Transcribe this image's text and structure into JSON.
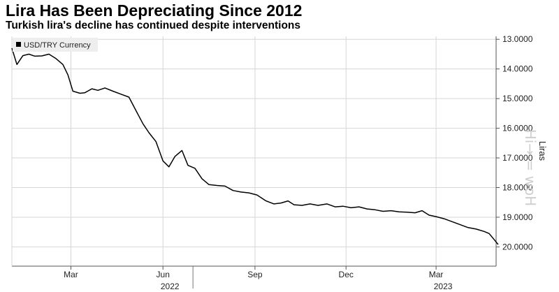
{
  "header": {
    "title": "Lira Has Been Depreciating Since 2012",
    "subtitle": "Turkish lira's decline has continued despite interventions"
  },
  "watermark": "Hi→ = woH",
  "chart_data": {
    "type": "line",
    "title": "Lira Has Been Depreciating Since 2012",
    "subtitle": "Turkish lira's decline has continued despite interventions",
    "ylabel": "Liras",
    "y_inverted": true,
    "ylim": [
      12.9,
      20.65
    ],
    "y_ticks": [
      13,
      14,
      15,
      16,
      17,
      18,
      19,
      20
    ],
    "y_tick_labels": [
      "13.0000",
      "14.0000",
      "15.0000",
      "16.0000",
      "17.0000",
      "18.0000",
      "19.0000",
      "20.0000"
    ],
    "x_ticks": [
      {
        "x": "2022-03-01",
        "label": "Mar"
      },
      {
        "x": "2022-06-01",
        "label": "Jun"
      },
      {
        "x": "2022-09-01",
        "label": "Sep"
      },
      {
        "x": "2022-12-01",
        "label": "Dec"
      },
      {
        "x": "2023-03-01",
        "label": "Mar"
      }
    ],
    "year_labels": [
      {
        "x": "2022-06-08",
        "label": "2022"
      },
      {
        "x": "2023-03-08",
        "label": "2023"
      }
    ],
    "year_separator": "2022-07-01",
    "xlim": [
      "2022-01-01",
      "2023-04-30"
    ],
    "legend": "top-left",
    "grid": true,
    "series": [
      {
        "name": "USD/TRY Currency",
        "color": "#000000",
        "points": [
          [
            "2022-01-01",
            13.3
          ],
          [
            "2022-01-06",
            13.85
          ],
          [
            "2022-01-12",
            13.55
          ],
          [
            "2022-01-18",
            13.5
          ],
          [
            "2022-01-24",
            13.57
          ],
          [
            "2022-01-31",
            13.56
          ],
          [
            "2022-02-07",
            13.5
          ],
          [
            "2022-02-14",
            13.65
          ],
          [
            "2022-02-21",
            13.85
          ],
          [
            "2022-02-26",
            14.2
          ],
          [
            "2022-03-03",
            14.75
          ],
          [
            "2022-03-10",
            14.82
          ],
          [
            "2022-03-15",
            14.8
          ],
          [
            "2022-03-22",
            14.67
          ],
          [
            "2022-03-28",
            14.72
          ],
          [
            "2022-04-04",
            14.64
          ],
          [
            "2022-04-12",
            14.75
          ],
          [
            "2022-04-20",
            14.85
          ],
          [
            "2022-04-28",
            14.95
          ],
          [
            "2022-05-05",
            15.4
          ],
          [
            "2022-05-12",
            15.85
          ],
          [
            "2022-05-18",
            16.15
          ],
          [
            "2022-05-25",
            16.45
          ],
          [
            "2022-06-01",
            17.1
          ],
          [
            "2022-06-07",
            17.3
          ],
          [
            "2022-06-13",
            16.95
          ],
          [
            "2022-06-20",
            16.75
          ],
          [
            "2022-06-26",
            17.25
          ],
          [
            "2022-07-03",
            17.35
          ],
          [
            "2022-07-10",
            17.7
          ],
          [
            "2022-07-17",
            17.9
          ],
          [
            "2022-07-25",
            17.93
          ],
          [
            "2022-08-02",
            17.95
          ],
          [
            "2022-08-10",
            18.1
          ],
          [
            "2022-08-18",
            18.15
          ],
          [
            "2022-08-26",
            18.18
          ],
          [
            "2022-09-03",
            18.25
          ],
          [
            "2022-09-12",
            18.45
          ],
          [
            "2022-09-20",
            18.55
          ],
          [
            "2022-09-27",
            18.52
          ],
          [
            "2022-10-04",
            18.45
          ],
          [
            "2022-10-10",
            18.58
          ],
          [
            "2022-10-18",
            18.6
          ],
          [
            "2022-10-26",
            18.55
          ],
          [
            "2022-11-03",
            18.6
          ],
          [
            "2022-11-12",
            18.55
          ],
          [
            "2022-11-20",
            18.65
          ],
          [
            "2022-11-28",
            18.63
          ],
          [
            "2022-12-06",
            18.68
          ],
          [
            "2022-12-14",
            18.65
          ],
          [
            "2022-12-22",
            18.72
          ],
          [
            "2022-12-30",
            18.75
          ],
          [
            "2023-01-07",
            18.8
          ],
          [
            "2023-01-15",
            18.78
          ],
          [
            "2023-01-23",
            18.82
          ],
          [
            "2023-01-31",
            18.83
          ],
          [
            "2023-02-08",
            18.85
          ],
          [
            "2023-02-15",
            18.78
          ],
          [
            "2023-02-22",
            18.93
          ],
          [
            "2023-03-01",
            18.98
          ],
          [
            "2023-03-09",
            19.05
          ],
          [
            "2023-03-17",
            19.15
          ],
          [
            "2023-03-25",
            19.25
          ],
          [
            "2023-04-02",
            19.35
          ],
          [
            "2023-04-10",
            19.4
          ],
          [
            "2023-04-18",
            19.48
          ],
          [
            "2023-04-23",
            19.55
          ],
          [
            "2023-04-28",
            19.75
          ],
          [
            "2023-05-02",
            19.92
          ]
        ]
      }
    ]
  }
}
